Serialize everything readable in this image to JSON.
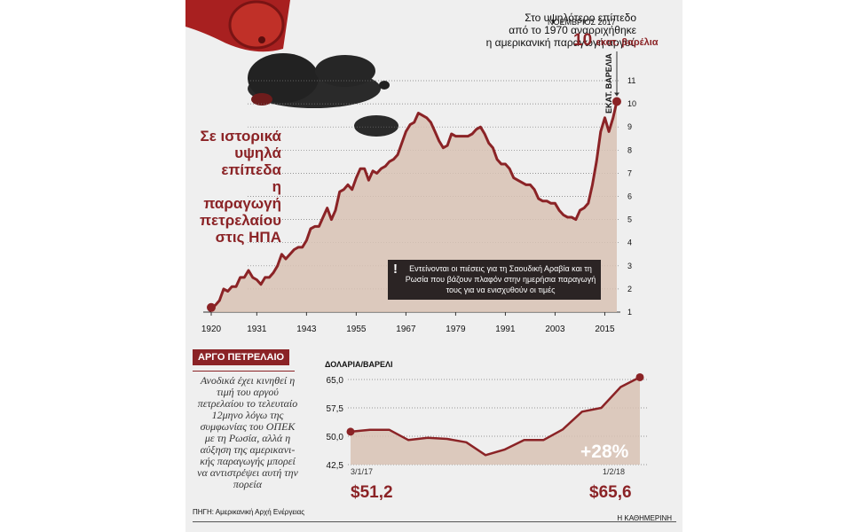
{
  "colors": {
    "accent": "#8b2326",
    "area": "#d8c2b4",
    "grid": "#777777",
    "background": "#efefef"
  },
  "headline": [
    "Σε ιστορικά",
    "υψηλά",
    "επίπεδα",
    "η παραγωγή",
    "πετρελαίου",
    "στις ΗΠΑ"
  ],
  "note": {
    "line1": "Στο υψηλότερο επίπεδο",
    "line2": "από το 1970 αναρριχήθηκε",
    "line3": "η αμερικανική παραγωγή αργού",
    "date": "ΝΟΕΜΒΡΙΟΣ 2017",
    "value_big": "10",
    "value_unit": "εκατ. βαρέλια"
  },
  "callout": {
    "icon": "exclamation-icon",
    "text": "Εντείνονται οι πιέσεις για τη Σαουδική Αραβία και τη Ρωσία που βάζουν πλαφόν στην ημερήσια παραγωγή τους για να ενισχυθούν οι τιμές"
  },
  "decoration": {
    "illustration": "oil-barrel-spill"
  },
  "crude": {
    "badge": "ΑΡΓΟ ΠΕΤΡΕΛΑΙΟ",
    "text": "Ανοδικά έχει κινηθεί η τιμή του αργού πετρελαίου το τελευταίο 12μηνο λόγω της συμφωνίας του ΟΠΕΚ με τη Ρωσία, αλλά η αύξηση της αμερικανι-κής παραγωγής μπορεί να αντιστρέψει αυτή την πορεία",
    "start_date": "3/1/17",
    "end_date": "1/2/18",
    "start_price": "$51,2",
    "end_price": "$65,6",
    "change": "+28%"
  },
  "footer": {
    "source": "ΠΗΓΗ: Αμερικανική Αρχή Ενέργειας",
    "publisher": "Η ΚΑΘΗΜΕΡΙΝΗ"
  },
  "chart_data": [
    {
      "type": "area",
      "title": "",
      "ylabel": "ΕΚΑΤ. ΒΑΡΕΛΙΑ",
      "ylim": [
        1,
        11
      ],
      "yticks": [
        1,
        2,
        3,
        4,
        5,
        6,
        7,
        8,
        9,
        10,
        11
      ],
      "xlim": [
        1920,
        2017.9
      ],
      "xticks": [
        1920,
        1931,
        1943,
        1955,
        1967,
        1979,
        1991,
        2003,
        2015
      ],
      "x": [
        1920,
        1921,
        1922,
        1923,
        1924,
        1925,
        1926,
        1927,
        1928,
        1929,
        1930,
        1931,
        1932,
        1933,
        1934,
        1935,
        1936,
        1937,
        1938,
        1939,
        1940,
        1941,
        1942,
        1943,
        1944,
        1945,
        1946,
        1947,
        1948,
        1949,
        1950,
        1951,
        1952,
        1953,
        1954,
        1955,
        1956,
        1957,
        1958,
        1959,
        1960,
        1961,
        1962,
        1963,
        1964,
        1965,
        1966,
        1967,
        1968,
        1969,
        1970,
        1971,
        1972,
        1973,
        1974,
        1975,
        1976,
        1977,
        1978,
        1979,
        1980,
        1981,
        1982,
        1983,
        1984,
        1985,
        1986,
        1987,
        1988,
        1989,
        1990,
        1991,
        1992,
        1993,
        1994,
        1995,
        1996,
        1997,
        1998,
        1999,
        2000,
        2001,
        2002,
        2003,
        2004,
        2005,
        2006,
        2007,
        2008,
        2009,
        2010,
        2011,
        2012,
        2013,
        2014,
        2015,
        2016,
        2017,
        2017.9
      ],
      "y": [
        1.2,
        1.3,
        1.5,
        2.0,
        1.9,
        2.1,
        2.1,
        2.5,
        2.5,
        2.8,
        2.5,
        2.4,
        2.2,
        2.5,
        2.5,
        2.7,
        3.0,
        3.5,
        3.3,
        3.5,
        3.7,
        3.8,
        3.8,
        4.1,
        4.6,
        4.7,
        4.7,
        5.1,
        5.5,
        5.0,
        5.4,
        6.2,
        6.3,
        6.5,
        6.3,
        6.8,
        7.2,
        7.2,
        6.7,
        7.1,
        7.0,
        7.2,
        7.3,
        7.5,
        7.6,
        7.8,
        8.3,
        8.8,
        9.1,
        9.2,
        9.6,
        9.5,
        9.4,
        9.2,
        8.8,
        8.4,
        8.1,
        8.2,
        8.7,
        8.6,
        8.6,
        8.6,
        8.6,
        8.7,
        8.9,
        9.0,
        8.7,
        8.3,
        8.1,
        7.6,
        7.4,
        7.4,
        7.2,
        6.8,
        6.7,
        6.6,
        6.5,
        6.5,
        6.3,
        5.9,
        5.8,
        5.8,
        5.7,
        5.7,
        5.4,
        5.2,
        5.1,
        5.1,
        5.0,
        5.4,
        5.5,
        5.7,
        6.5,
        7.5,
        8.8,
        9.4,
        8.8,
        9.4,
        10.1
      ]
    },
    {
      "type": "line",
      "title": "",
      "ylabel": "ΔΟΛΑΡΙΑ/ΒΑΡΕΛΙ",
      "ylim": [
        42.5,
        65.0
      ],
      "yticks": [
        42.5,
        50.0,
        57.5,
        65.0
      ],
      "x": [
        "3/1/17",
        "2/2/17",
        "2/3/17",
        "10/3/17",
        "3/4/17",
        "2/5/17",
        "1/6/17",
        "21/6/17",
        "3/7/17",
        "1/8/17",
        "1/9/17",
        "2/10/17",
        "1/11/17",
        "1/12/17",
        "2/1/18",
        "1/2/18"
      ],
      "y": [
        51.2,
        51.7,
        51.7,
        49.0,
        49.6,
        49.3,
        48.4,
        45.0,
        46.5,
        49.0,
        49.0,
        51.8,
        56.5,
        57.5,
        63.0,
        65.6
      ]
    }
  ]
}
